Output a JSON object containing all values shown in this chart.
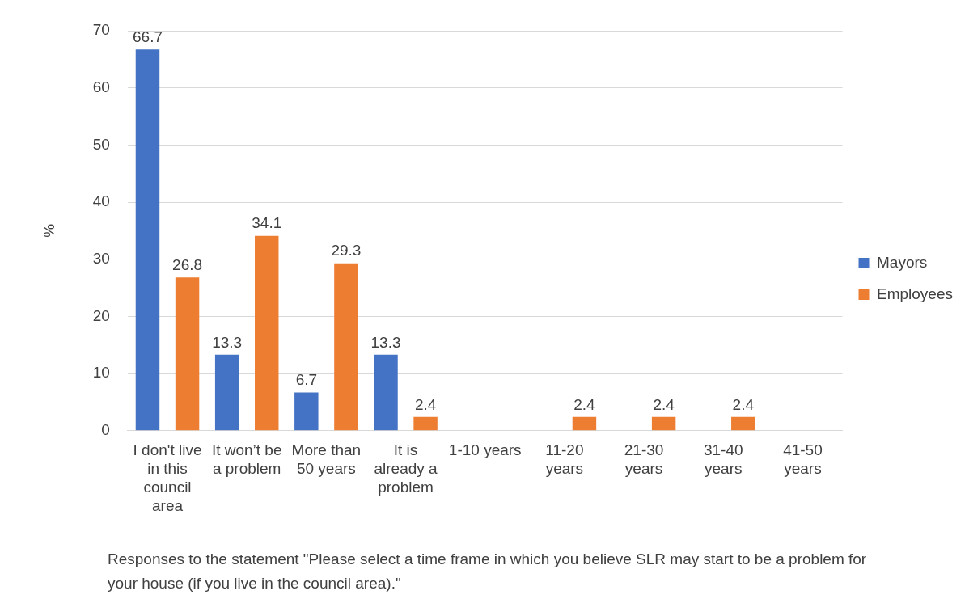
{
  "chart_data": {
    "type": "bar",
    "ylabel": "%",
    "categories": [
      "I don't live in this council area",
      "It won’t be a problem",
      "More than 50 years",
      "It is already a problem",
      "1-10 years",
      "11-20 years",
      "21-30 years",
      "31-40 years",
      "41-50 years"
    ],
    "series": [
      {
        "name": "Mayors",
        "color": "#4472c4",
        "values": [
          66.7,
          13.3,
          6.7,
          13.3,
          0,
          0,
          0,
          0,
          0
        ],
        "value_labels": [
          "66.7",
          "13.3",
          "6.7",
          "13.3",
          null,
          null,
          null,
          null,
          null
        ]
      },
      {
        "name": "Employees",
        "color": "#ed7d31",
        "values": [
          26.8,
          34.1,
          29.3,
          2.4,
          0,
          2.4,
          2.4,
          2.4,
          0
        ],
        "value_labels": [
          "26.8",
          "34.1",
          "29.3",
          "2.4",
          null,
          "2.4",
          "2.4",
          "2.4",
          null
        ]
      }
    ],
    "ylim": [
      0,
      70
    ],
    "yticks": [
      0,
      10,
      20,
      30,
      40,
      50,
      60,
      70
    ],
    "grid": "y",
    "legend": "right",
    "annotations": [
      "Responses to the statement \"Please select a time frame in which you believe SLR may start to be a problem for your house (if you live in the council area).\""
    ]
  }
}
